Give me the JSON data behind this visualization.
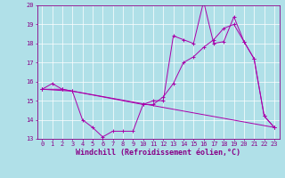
{
  "bg_color": "#b0e0e8",
  "grid_color": "#ffffff",
  "line_color": "#aa00aa",
  "xlabel": "Windchill (Refroidissement éolien,°C)",
  "xlim": [
    -0.5,
    23.5
  ],
  "ylim": [
    13,
    20
  ],
  "yticks": [
    13,
    14,
    15,
    16,
    17,
    18,
    19,
    20
  ],
  "xticks": [
    0,
    1,
    2,
    3,
    4,
    5,
    6,
    7,
    8,
    9,
    10,
    11,
    12,
    13,
    14,
    15,
    16,
    17,
    18,
    19,
    20,
    21,
    22,
    23
  ],
  "line1_x": [
    0,
    1,
    2,
    3,
    4,
    5,
    6,
    7,
    8,
    9,
    10,
    11,
    12,
    13,
    14,
    15,
    16,
    17,
    18,
    19,
    20,
    21,
    22,
    23
  ],
  "line1_y": [
    15.6,
    15.9,
    15.6,
    15.5,
    14.0,
    13.6,
    13.1,
    13.4,
    13.4,
    13.4,
    14.8,
    15.0,
    15.0,
    18.4,
    18.2,
    18.0,
    20.2,
    18.0,
    18.1,
    19.4,
    18.1,
    17.2,
    14.2,
    13.6
  ],
  "line2_x": [
    0,
    2,
    23
  ],
  "line2_y": [
    15.6,
    15.6,
    13.6
  ],
  "line3_x": [
    0,
    3,
    10,
    11,
    12,
    13,
    14,
    15,
    16,
    17,
    18,
    19,
    20,
    21,
    22,
    23
  ],
  "line3_y": [
    15.6,
    15.5,
    14.8,
    14.8,
    15.2,
    15.9,
    17.0,
    17.3,
    17.8,
    18.2,
    18.8,
    19.0,
    18.1,
    17.2,
    14.2,
    13.6
  ],
  "figsize": [
    3.2,
    2.0
  ],
  "dpi": 100,
  "tick_fontsize": 5,
  "axis_fontsize": 6
}
